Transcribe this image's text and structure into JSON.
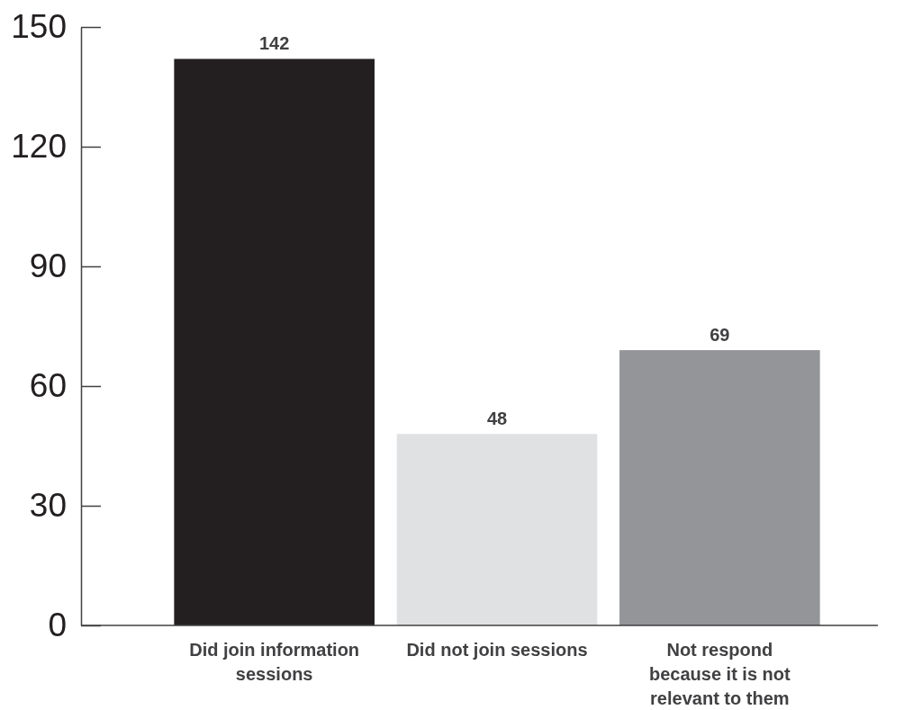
{
  "chart_data": {
    "type": "bar",
    "categories": [
      "Did join information sessions",
      "Did not join sessions",
      "Not respond because it is not relevant to them"
    ],
    "values": [
      142,
      48,
      69
    ],
    "colors": [
      "#231f20",
      "#e0e1e2",
      "#939598"
    ],
    "ylim": [
      0,
      150
    ],
    "yticks": [
      0,
      30,
      60,
      90,
      120,
      150
    ],
    "data_labels": true,
    "grid": false,
    "legend": false
  }
}
